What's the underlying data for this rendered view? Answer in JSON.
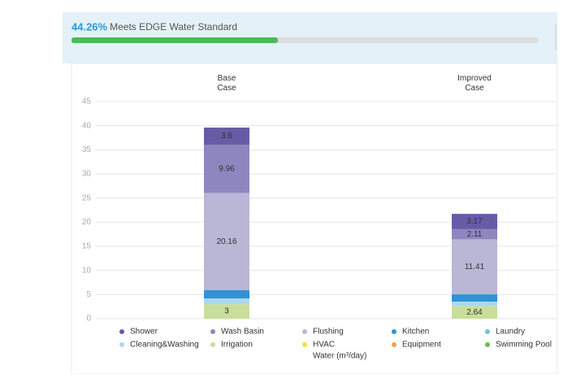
{
  "header": {
    "progress": {
      "value": 44.26,
      "label": "44.26%"
    },
    "progress_lim": [
      0,
      100
    ],
    "label": "Meets EDGE Water Standard"
  },
  "chart_data": {
    "type": "stacked_bar",
    "categories": [
      "Base Case",
      "Improved Case"
    ],
    "xlabel": "Water (m³/day)",
    "ylim": [
      0,
      45
    ],
    "yticks": [
      0,
      5,
      10,
      15,
      20,
      25,
      30,
      35,
      40,
      45
    ],
    "grid": true,
    "series": [
      {
        "name": "Irrigation",
        "color": "#c9de9a",
        "values": [
          3,
          2.64
        ]
      },
      {
        "name": "Cleaning&Washing",
        "color": "#acd7f2",
        "values": [
          1.2,
          0.9
        ]
      },
      {
        "name": "Laundry",
        "color": "#6cc0ea",
        "values": [
          0,
          0
        ]
      },
      {
        "name": "Kitchen",
        "color": "#2f93d6",
        "values": [
          1.7,
          1.5
        ]
      },
      {
        "name": "Flushing",
        "color": "#bab6d5",
        "values": [
          20.16,
          11.41
        ]
      },
      {
        "name": "Wash Basin",
        "color": "#8e86bf",
        "values": [
          9.96,
          2.11
        ]
      },
      {
        "name": "Shower",
        "color": "#685ba6",
        "values": [
          3.6,
          3.17
        ]
      },
      {
        "name": "HVAC",
        "color": "#f0df3a",
        "values": [
          0,
          0
        ]
      },
      {
        "name": "Equipment",
        "color": "#f5a04a",
        "values": [
          0,
          0
        ]
      },
      {
        "name": "Swimming Pool",
        "color": "#6cb854",
        "values": [
          0,
          0
        ]
      }
    ]
  }
}
